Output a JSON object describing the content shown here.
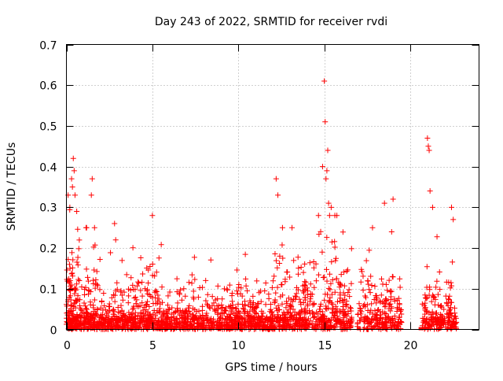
{
  "chart_data": {
    "type": "scatter",
    "title": "Day 243 of 2022, SRMTID for receiver rvdi",
    "xlabel": "GPS time / hours",
    "ylabel": "SRMTID / TECUs",
    "xlim": [
      0,
      24
    ],
    "ylim": [
      0,
      0.7
    ],
    "xticks": [
      0,
      5,
      10,
      15,
      20
    ],
    "yticks": [
      0,
      0.1,
      0.2,
      0.3,
      0.4,
      0.5,
      0.6,
      0.7
    ],
    "grid": true,
    "marker": "plus",
    "series": [
      {
        "name": "SRMTID",
        "color": "#ff0000",
        "seed": 243,
        "description": "dense scatter of 1-minute SRMTID samples",
        "clusters": [
          {
            "x_start": 0.0,
            "x_end": 0.8,
            "n": 160,
            "ymax": 0.3,
            "scale": 0.11
          },
          {
            "x_start": 0.8,
            "x_end": 2.0,
            "n": 150,
            "ymax": 0.25,
            "scale": 0.1
          },
          {
            "x_start": 2.0,
            "x_end": 4.0,
            "n": 230,
            "ymax": 0.22,
            "scale": 0.065
          },
          {
            "x_start": 4.0,
            "x_end": 5.6,
            "n": 200,
            "ymax": 0.25,
            "scale": 0.085
          },
          {
            "x_start": 5.6,
            "x_end": 8.0,
            "n": 260,
            "ymax": 0.18,
            "scale": 0.055
          },
          {
            "x_start": 8.0,
            "x_end": 10.3,
            "n": 250,
            "ymax": 0.22,
            "scale": 0.07
          },
          {
            "x_start": 10.3,
            "x_end": 12.0,
            "n": 200,
            "ymax": 0.2,
            "scale": 0.06
          },
          {
            "x_start": 12.0,
            "x_end": 14.0,
            "n": 240,
            "ymax": 0.25,
            "scale": 0.11
          },
          {
            "x_start": 14.0,
            "x_end": 16.6,
            "n": 290,
            "ymax": 0.28,
            "scale": 0.12
          },
          {
            "x_start": 16.9,
            "x_end": 19.5,
            "n": 230,
            "ymax": 0.25,
            "scale": 0.1
          },
          {
            "x_start": 20.7,
            "x_end": 22.7,
            "n": 200,
            "ymax": 0.3,
            "scale": 0.09
          }
        ],
        "peaks": [
          {
            "x": 0.1,
            "y": 0.33
          },
          {
            "x": 0.2,
            "y": 0.3
          },
          {
            "x": 0.3,
            "y": 0.37
          },
          {
            "x": 0.35,
            "y": 0.35
          },
          {
            "x": 0.4,
            "y": 0.42
          },
          {
            "x": 0.45,
            "y": 0.39
          },
          {
            "x": 0.5,
            "y": 0.33
          },
          {
            "x": 0.6,
            "y": 0.29
          },
          {
            "x": 1.5,
            "y": 0.37
          },
          {
            "x": 1.45,
            "y": 0.33
          },
          {
            "x": 2.8,
            "y": 0.26
          },
          {
            "x": 5.0,
            "y": 0.28
          },
          {
            "x": 12.2,
            "y": 0.37
          },
          {
            "x": 12.3,
            "y": 0.33
          },
          {
            "x": 14.9,
            "y": 0.4
          },
          {
            "x": 15.0,
            "y": 0.61
          },
          {
            "x": 15.05,
            "y": 0.51
          },
          {
            "x": 15.1,
            "y": 0.37
          },
          {
            "x": 15.2,
            "y": 0.44
          },
          {
            "x": 15.15,
            "y": 0.39
          },
          {
            "x": 15.25,
            "y": 0.31
          },
          {
            "x": 15.4,
            "y": 0.3
          },
          {
            "x": 18.5,
            "y": 0.31
          },
          {
            "x": 19.0,
            "y": 0.32
          },
          {
            "x": 21.0,
            "y": 0.47
          },
          {
            "x": 21.05,
            "y": 0.45
          },
          {
            "x": 21.1,
            "y": 0.44
          },
          {
            "x": 21.15,
            "y": 0.34
          },
          {
            "x": 21.3,
            "y": 0.3
          },
          {
            "x": 22.4,
            "y": 0.3
          },
          {
            "x": 22.5,
            "y": 0.27
          }
        ],
        "zero_markers": [
          {
            "x": 17.0,
            "y": 0.0
          },
          {
            "x": 20.6,
            "y": 0.0
          }
        ]
      }
    ]
  }
}
